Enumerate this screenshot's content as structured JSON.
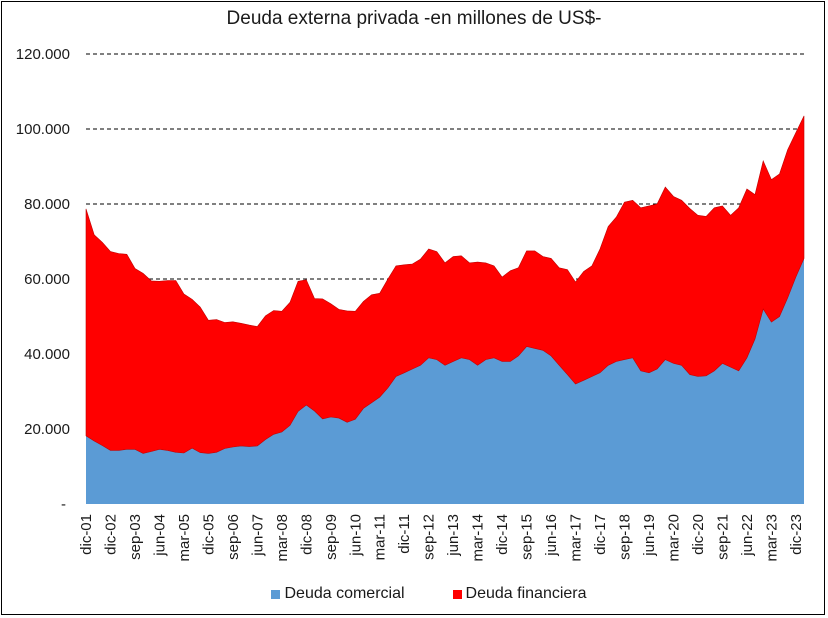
{
  "chart_data": {
    "type": "area",
    "stacked": true,
    "title": "Deuda externa privada -en millones de US$-",
    "xlabel": "",
    "ylabel": "",
    "ylim": [
      0,
      120000
    ],
    "yticks": [
      0,
      20000,
      40000,
      60000,
      80000,
      100000,
      120000
    ],
    "ytick_labels": [
      "-",
      "20.000",
      "40.000",
      "60.000",
      "80.000",
      "100.000",
      "120.000"
    ],
    "grid": "horizontal dashed",
    "legend_position": "bottom",
    "x_labels": [
      "dic-01",
      "dic-02",
      "sep-03",
      "jun-04",
      "mar-05",
      "dic-05",
      "sep-06",
      "jun-07",
      "mar-08",
      "dic-08",
      "sep-09",
      "jun-10",
      "mar-11",
      "dic-11",
      "sep-12",
      "jun-13",
      "mar-14",
      "dic-14",
      "sep-15",
      "jun-16",
      "mar-17",
      "dic-17",
      "sep-18",
      "jun-19",
      "mar-20",
      "dic-20",
      "sep-21",
      "jun-22",
      "mar-23",
      "dic-23"
    ],
    "x_label_every": 3,
    "series": [
      {
        "name": "Deuda comercial",
        "color": "#5b9bd5",
        "values": [
          18200,
          16800,
          15600,
          14300,
          14300,
          14600,
          14600,
          13500,
          14000,
          14600,
          14300,
          13800,
          13600,
          14900,
          13700,
          13500,
          13800,
          14800,
          15200,
          15500,
          15300,
          15500,
          17200,
          18600,
          19200,
          21000,
          24700,
          26400,
          24800,
          22700,
          23200,
          22900,
          21800,
          22600,
          25500,
          27000,
          28500,
          31000,
          34000,
          35000,
          36000,
          37000,
          39000,
          38500,
          37000,
          38000,
          39000,
          38500,
          37000,
          38500,
          39000,
          38000,
          38000,
          39500,
          42000,
          41500,
          41000,
          39500,
          37000,
          34500,
          32000,
          33000,
          34000,
          35000,
          37000,
          38000,
          38500,
          39000,
          35500,
          35000,
          36000,
          38500,
          37500,
          37000,
          34500,
          34000,
          34200,
          35500,
          37500,
          36500,
          35500,
          39000,
          44000,
          52000,
          48500,
          50000,
          55000,
          60500,
          65500
        ]
      },
      {
        "name": "Deuda financiera",
        "color": "#ff0000",
        "values": [
          60500,
          55000,
          54200,
          53000,
          52500,
          52000,
          48200,
          48000,
          45500,
          44800,
          45300,
          45800,
          42400,
          39700,
          38800,
          35500,
          35400,
          33600,
          33400,
          32700,
          32400,
          31800,
          33000,
          33000,
          32200,
          32800,
          34700,
          33400,
          30000,
          32000,
          30200,
          29000,
          29700,
          28800,
          28500,
          28800,
          27700,
          29000,
          29500,
          28800,
          28000,
          28300,
          29000,
          28800,
          27300,
          28000,
          27200,
          25800,
          27500,
          25800,
          24500,
          22500,
          24200,
          23500,
          25500,
          26000,
          25000,
          26000,
          26000,
          28000,
          27200,
          29000,
          29500,
          33000,
          37000,
          38500,
          42000,
          42000,
          43500,
          44500,
          44000,
          46000,
          44500,
          44000,
          44300,
          43000,
          42500,
          43500,
          42000,
          40500,
          43500,
          45000,
          38500,
          39500,
          38000,
          38000,
          39500,
          38500,
          38000
        ]
      }
    ]
  }
}
